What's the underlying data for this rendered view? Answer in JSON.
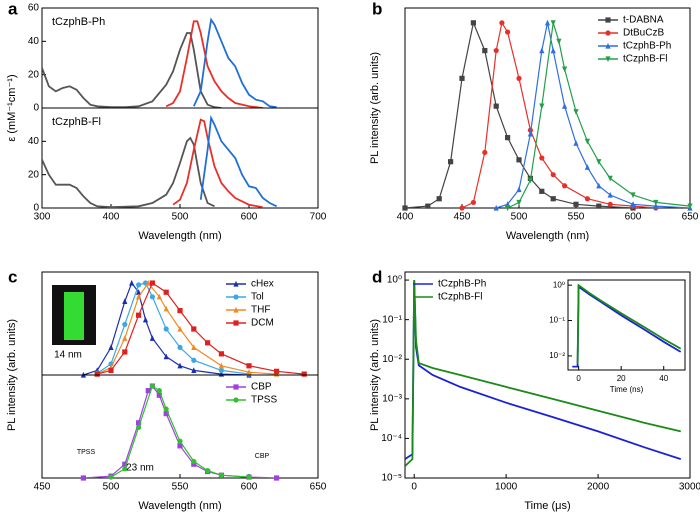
{
  "chart_data": [
    {
      "type": "line",
      "panel": "a",
      "title": "tCzphB-Ph",
      "ylabel": "ε (mM⁻¹cm⁻¹)",
      "xlim": [
        300,
        700
      ],
      "ylim": [
        0,
        60
      ],
      "yticks": [
        0,
        20,
        40,
        60
      ],
      "series": [
        {
          "color": "#555555",
          "x": [
            300,
            310,
            320,
            330,
            340,
            350,
            360,
            370,
            380,
            400,
            420,
            440,
            460,
            480,
            490,
            500,
            510,
            515,
            520,
            530,
            540,
            550,
            560
          ],
          "values": [
            24,
            13,
            10,
            12,
            13,
            11,
            6,
            2,
            1,
            0.5,
            0.5,
            1,
            4,
            14,
            22,
            35,
            45,
            45,
            35,
            10,
            2,
            0.5,
            0
          ]
        },
        {
          "color": "#e8302a",
          "x": [
            480,
            490,
            500,
            510,
            520,
            525,
            530,
            540,
            550,
            560,
            570,
            580,
            600,
            620
          ],
          "values": [
            1,
            3,
            10,
            30,
            52,
            52,
            45,
            25,
            16,
            10,
            6,
            3,
            1,
            0
          ]
        },
        {
          "color": "#1f6fd6",
          "x": [
            520,
            530,
            540,
            545,
            550,
            560,
            570,
            580,
            590,
            600,
            610,
            620,
            630,
            640
          ],
          "values": [
            1,
            10,
            40,
            53,
            50,
            40,
            30,
            25,
            15,
            8,
            5,
            4,
            1,
            0.5
          ]
        }
      ]
    },
    {
      "type": "line",
      "title": "tCzphB-Fl",
      "xlabel": "Wavelength (nm)",
      "xlim": [
        300,
        700
      ],
      "ylim": [
        0,
        60
      ],
      "xticks": [
        300,
        400,
        500,
        600,
        700
      ],
      "yticks": [
        0,
        20,
        40
      ],
      "series": [
        {
          "color": "#555555",
          "x": [
            300,
            310,
            320,
            330,
            340,
            350,
            360,
            370,
            380,
            400,
            440,
            460,
            480,
            490,
            500,
            510,
            515,
            520,
            530,
            540,
            550
          ],
          "values": [
            29,
            20,
            14,
            14,
            14,
            12,
            7,
            3,
            1,
            0.5,
            1,
            3,
            8,
            15,
            27,
            40,
            42,
            38,
            15,
            3,
            1
          ]
        },
        {
          "color": "#e8302a",
          "x": [
            490,
            500,
            510,
            520,
            530,
            535,
            540,
            550,
            560,
            570,
            580,
            600,
            620
          ],
          "values": [
            2,
            5,
            15,
            35,
            53,
            52,
            42,
            25,
            15,
            10,
            6,
            2,
            0.5
          ]
        },
        {
          "color": "#1f6fd6",
          "x": [
            530,
            540,
            545,
            550,
            560,
            570,
            580,
            590,
            600,
            610,
            620,
            630,
            640
          ],
          "values": [
            5,
            35,
            54,
            50,
            40,
            35,
            30,
            20,
            13,
            12,
            6,
            3,
            1
          ]
        }
      ]
    },
    {
      "type": "line",
      "panel": "b",
      "ylabel": "PL intensity (arb. units)",
      "xlabel": "Wavelength (nm)",
      "xlim": [
        400,
        650
      ],
      "ylim": [
        0,
        1.08
      ],
      "xticks": [
        400,
        450,
        500,
        550,
        600,
        650
      ],
      "legend": "upper right",
      "series": [
        {
          "name": "t-DABNA",
          "color": "#444444",
          "marker": "square",
          "x": [
            400,
            420,
            430,
            440,
            450,
            460,
            470,
            480,
            490,
            500,
            510,
            520,
            530,
            550,
            570,
            600
          ],
          "values": [
            0,
            0.01,
            0.05,
            0.25,
            0.7,
            1.0,
            0.85,
            0.55,
            0.38,
            0.26,
            0.16,
            0.09,
            0.05,
            0.02,
            0.01,
            0
          ]
        },
        {
          "name": "DtBuCzB",
          "color": "#e8302a",
          "marker": "circle",
          "x": [
            450,
            460,
            470,
            480,
            485,
            490,
            500,
            510,
            520,
            530,
            540,
            560,
            580,
            600,
            620
          ],
          "values": [
            0,
            0.03,
            0.3,
            0.85,
            1.0,
            0.95,
            0.7,
            0.42,
            0.27,
            0.18,
            0.12,
            0.05,
            0.02,
            0.01,
            0
          ]
        },
        {
          "name": "tCzphB-Ph",
          "color": "#2f6fe0",
          "marker": "triangle",
          "x": [
            480,
            490,
            500,
            510,
            520,
            525,
            530,
            540,
            550,
            560,
            570,
            580,
            600,
            620,
            650
          ],
          "values": [
            0,
            0.02,
            0.1,
            0.4,
            0.85,
            1.0,
            0.85,
            0.55,
            0.35,
            0.22,
            0.12,
            0.07,
            0.02,
            0.01,
            0
          ]
        },
        {
          "name": "tCzphB-Fl",
          "color": "#22a04a",
          "marker": "triangle-down",
          "x": [
            490,
            500,
            510,
            520,
            530,
            535,
            540,
            550,
            560,
            570,
            580,
            600,
            620,
            650
          ],
          "values": [
            0,
            0.03,
            0.15,
            0.55,
            1.0,
            0.9,
            0.75,
            0.52,
            0.36,
            0.25,
            0.16,
            0.07,
            0.03,
            0.01
          ]
        }
      ]
    },
    {
      "type": "line",
      "panel": "c",
      "ylabel": "PL intensity (arb. units)",
      "xlim": [
        450,
        650
      ],
      "ylim": [
        0,
        1.12
      ],
      "legend": "upper right",
      "annotations": [
        "14 nm"
      ],
      "series": [
        {
          "name": "cHex",
          "color": "#1a2fb0",
          "marker": "triangle",
          "x": [
            480,
            490,
            500,
            510,
            515,
            520,
            525,
            530,
            540,
            550,
            560,
            580,
            600
          ],
          "values": [
            0,
            0.05,
            0.3,
            0.8,
            1.0,
            0.9,
            0.6,
            0.4,
            0.2,
            0.1,
            0.05,
            0.01,
            0
          ]
        },
        {
          "name": "Tol",
          "color": "#3aa8e8",
          "marker": "circle",
          "x": [
            490,
            500,
            510,
            520,
            525,
            530,
            540,
            550,
            560,
            580,
            600
          ],
          "values": [
            0.02,
            0.12,
            0.55,
            0.98,
            1.0,
            0.85,
            0.5,
            0.3,
            0.16,
            0.05,
            0.01
          ]
        },
        {
          "name": "THF",
          "color": "#f08a24",
          "marker": "triangle",
          "x": [
            490,
            500,
            510,
            520,
            527,
            535,
            540,
            550,
            560,
            580,
            600,
            620
          ],
          "values": [
            0.01,
            0.08,
            0.4,
            0.85,
            1.0,
            0.85,
            0.72,
            0.5,
            0.3,
            0.1,
            0.03,
            0.01
          ]
        },
        {
          "name": "DCM",
          "color": "#e02020",
          "marker": "square",
          "x": [
            490,
            500,
            510,
            520,
            530,
            540,
            550,
            560,
            570,
            580,
            600,
            620,
            640
          ],
          "values": [
            0.01,
            0.05,
            0.25,
            0.65,
            1.0,
            0.9,
            0.7,
            0.5,
            0.35,
            0.23,
            0.1,
            0.04,
            0.01
          ]
        }
      ]
    },
    {
      "type": "line",
      "xlabel": "Wavelength (nm)",
      "xlim": [
        450,
        650
      ],
      "ylim": [
        0,
        1.12
      ],
      "xticks": [
        450,
        500,
        550,
        600,
        650
      ],
      "legend": "upper right",
      "annotations": [
        "23 nm",
        "TPSS",
        "CBP"
      ],
      "series": [
        {
          "name": "CBP",
          "color": "#a040e0",
          "marker": "square",
          "x": [
            480,
            500,
            510,
            520,
            527,
            530,
            535,
            540,
            550,
            560,
            570,
            580,
            600,
            620
          ],
          "values": [
            0,
            0.02,
            0.15,
            0.6,
            0.95,
            1.0,
            0.9,
            0.7,
            0.35,
            0.15,
            0.07,
            0.03,
            0.01,
            0
          ]
        },
        {
          "name": "TPSS",
          "color": "#30c030",
          "marker": "circle",
          "x": [
            500,
            510,
            520,
            530,
            535,
            540,
            550,
            560,
            570,
            580,
            600
          ],
          "values": [
            0.01,
            0.1,
            0.55,
            1.0,
            0.95,
            0.75,
            0.4,
            0.18,
            0.08,
            0.03,
            0.01
          ]
        }
      ]
    },
    {
      "type": "line",
      "panel": "d",
      "ylabel": "PL intensity (arb. units)",
      "xlabel": "Time (μs)",
      "yscale": "log",
      "xlim": [
        -100,
        3000
      ],
      "ylim": [
        1e-05,
        1.6
      ],
      "xticks": [
        0,
        1000,
        2000,
        3000
      ],
      "yticks": [
        {
          "value": 1e-05,
          "label": "10⁻⁵"
        },
        {
          "value": 0.0001,
          "label": "10⁻⁴"
        },
        {
          "value": 0.001,
          "label": "10⁻³"
        },
        {
          "value": 0.01,
          "label": "10⁻²"
        },
        {
          "value": 0.1,
          "label": "10⁻¹"
        },
        {
          "value": 1,
          "label": "10⁰"
        }
      ],
      "legend": "upper left",
      "series": [
        {
          "name": "tCzphB-Ph",
          "color": "#1a22d8",
          "x": [
            -100,
            -20,
            0,
            20,
            50,
            200,
            500,
            1000,
            1500,
            2000,
            2500,
            2900
          ],
          "values": [
            3e-05,
            4e-05,
            1,
            0.02,
            0.007,
            0.004,
            0.002,
            0.0008,
            0.00035,
            0.00015,
            6e-05,
            3e-05
          ]
        },
        {
          "name": "tCzphB-Fl",
          "color": "#1a8a1a",
          "x": [
            -100,
            -20,
            0,
            20,
            50,
            200,
            500,
            1000,
            1500,
            2000,
            2500,
            2900
          ],
          "values": [
            2e-05,
            3e-05,
            1,
            0.03,
            0.008,
            0.006,
            0.004,
            0.002,
            0.001,
            0.0005,
            0.00025,
            0.00015
          ]
        }
      ]
    },
    {
      "type": "line",
      "xlabel": "Time (ns)",
      "yscale": "log",
      "xlim": [
        -5,
        50
      ],
      "ylim": [
        0.004,
        1.4
      ],
      "xticks": [
        0,
        20,
        40
      ],
      "yticks": [
        {
          "value": 0.01,
          "label": "10⁻²"
        },
        {
          "value": 0.1,
          "label": "10⁻¹"
        },
        {
          "value": 1,
          "label": "10⁰"
        }
      ],
      "series": [
        {
          "color": "#1a22d8",
          "x": [
            -3,
            -0.5,
            0,
            5,
            10,
            20,
            30,
            40,
            48
          ],
          "values": [
            0.005,
            0.005,
            0.9,
            0.55,
            0.35,
            0.14,
            0.06,
            0.025,
            0.013
          ]
        },
        {
          "color": "#1a8a1a",
          "x": [
            -0.5,
            0,
            5,
            10,
            20,
            30,
            40,
            48
          ],
          "values": [
            0.006,
            1,
            0.6,
            0.38,
            0.16,
            0.07,
            0.03,
            0.016
          ]
        }
      ]
    }
  ]
}
